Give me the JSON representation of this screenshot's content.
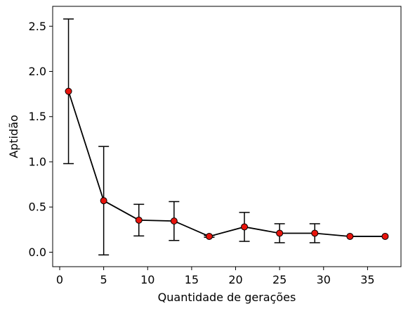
{
  "chart_data": {
    "type": "line",
    "title": "",
    "xlabel": "Quantidade de gerações",
    "ylabel": "Aptidão",
    "xlim": [
      -0.8,
      38.8
    ],
    "ylim": [
      -0.16,
      2.72
    ],
    "xticks": [
      0,
      5,
      10,
      15,
      20,
      25,
      30,
      35
    ],
    "xtick_labels": [
      "0",
      "5",
      "10",
      "15",
      "20",
      "25",
      "30",
      "35"
    ],
    "yticks": [
      0.0,
      0.5,
      1.0,
      1.5,
      2.0,
      2.5
    ],
    "ytick_labels": [
      "0.0",
      "0.5",
      "1.0",
      "1.5",
      "2.0",
      "2.5"
    ],
    "grid": false,
    "series": [
      {
        "x": [
          1,
          5,
          9,
          13,
          17,
          21,
          25,
          29,
          33,
          37
        ],
        "y": [
          1.78,
          0.57,
          0.355,
          0.345,
          0.175,
          0.28,
          0.21,
          0.21,
          0.175,
          0.175
        ],
        "yerr": [
          0.8,
          0.6,
          0.175,
          0.215,
          0.01,
          0.16,
          0.105,
          0.105,
          0.0,
          0.0
        ],
        "line_color": "#000000",
        "marker_color": "#e8140c",
        "marker_edge": "#000000"
      }
    ]
  }
}
